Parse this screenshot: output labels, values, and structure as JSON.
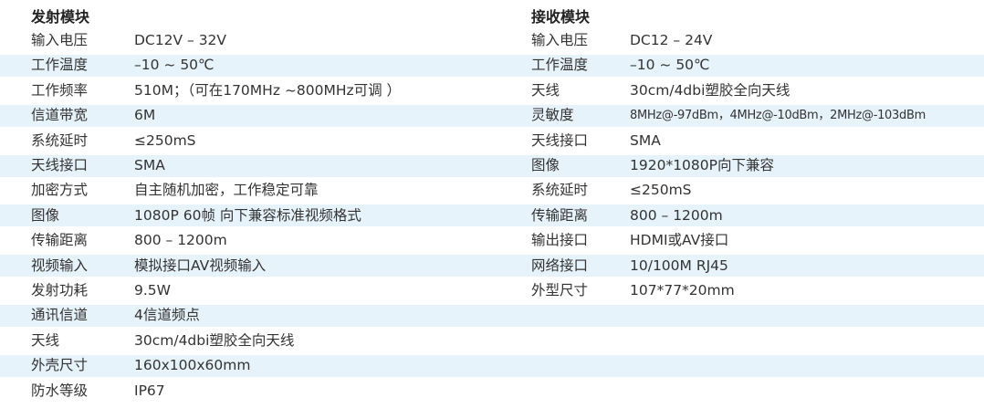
{
  "transmitter": {
    "title": "发射模块",
    "rows": [
      {
        "label": "输入电压",
        "value": "DC12V – 32V"
      },
      {
        "label": "工作温度",
        "value": "–10 ~ 50℃"
      },
      {
        "label": "工作频率",
        "value": "510M；（可在170MHz ~800MHz可调 ）"
      },
      {
        "label": "信道带宽",
        "value": " 6M"
      },
      {
        "label": "系统延时",
        "value": "≤250mS"
      },
      {
        "label": "天线接口",
        "value": "SMA"
      },
      {
        "label": "加密方式",
        "value": "自主随机加密，工作稳定可靠"
      },
      {
        "label": "图像",
        "value": "1080P  60帧 向下兼容标准视频格式"
      },
      {
        "label": "传输距离",
        "value": "800  –  1200m"
      },
      {
        "label": "视频输入",
        "value": "模拟接口AV视频输入"
      },
      {
        "label": "发射功耗",
        "value": "9.5W"
      },
      {
        "label": "通讯信道",
        "value": "4信道频点"
      },
      {
        "label": "天线",
        "value": "30cm/4dbi塑胶全向天线"
      },
      {
        "label": "外壳尺寸",
        "value": "160x100x60mm"
      },
      {
        "label": "防水等级",
        "value": "IP67"
      }
    ]
  },
  "receiver": {
    "title": "接收模块",
    "rows": [
      {
        "label": "输入电压",
        "value": "DC12  –  24V"
      },
      {
        "label": "工作温度",
        "value": "–10 ~ 50℃"
      },
      {
        "label": "天线",
        "value": "30cm/4dbi塑胶全向天线"
      },
      {
        "label": "灵敏度",
        "value": "8MHz@-97dBm，4MHz@-10dBm，2MHz@-103dBm"
      },
      {
        "label": "天线接口",
        "value": "SMA"
      },
      {
        "label": "图像",
        "value": "1920*1080P向下兼容"
      },
      {
        "label": "系统延时",
        "value": "≤250mS"
      },
      {
        "label": "传输距离",
        "value": "800  –  1200m"
      },
      {
        "label": "输出接口",
        "value": "HDMI或AV接口"
      },
      {
        "label": "网络接口",
        "value": "10/100M  RJ45"
      },
      {
        "label": "外型尺寸",
        "value": "107*77*20mm"
      }
    ]
  },
  "colors": {
    "band": "#e7f3fb",
    "text": "#333333"
  }
}
